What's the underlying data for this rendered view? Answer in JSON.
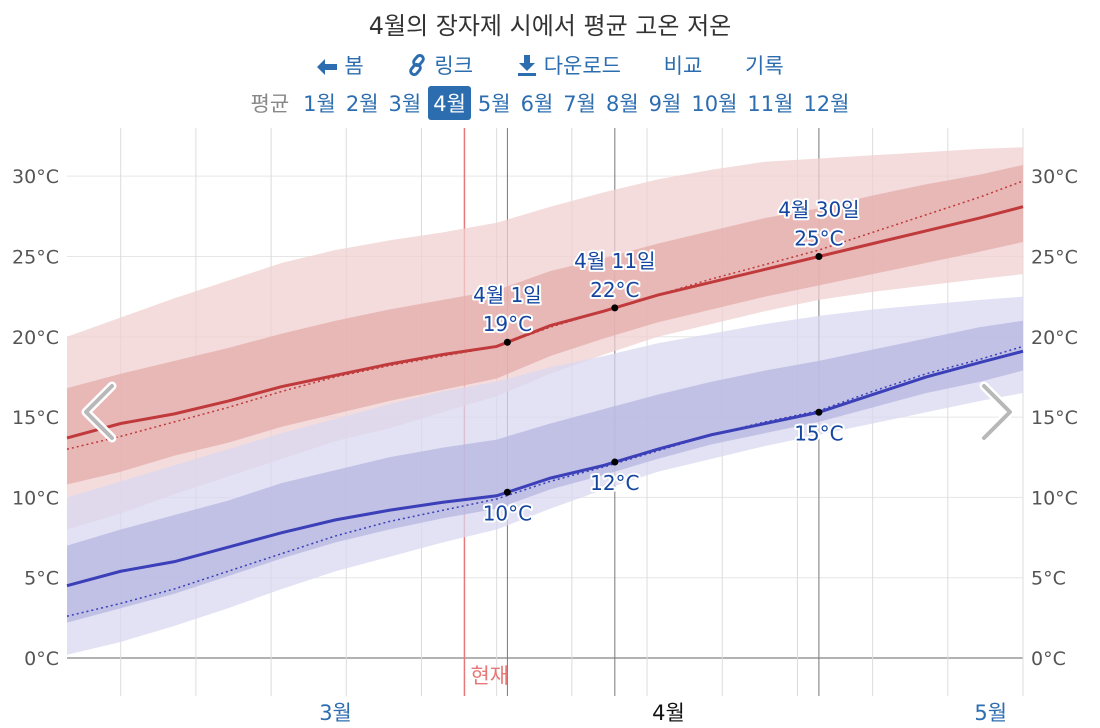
{
  "title": "4월의 장자제 시에서 평균 고온 저온",
  "nav": {
    "home": "봄",
    "link": "링크",
    "download": "다운로드",
    "compare": "비교",
    "history": "기록"
  },
  "months": {
    "label": "평균",
    "items": [
      "1월",
      "2월",
      "3월",
      "4월",
      "5월",
      "6월",
      "7월",
      "8월",
      "9월",
      "10월",
      "11월",
      "12월"
    ],
    "active": "4월"
  },
  "now_label": "현재",
  "colors": {
    "high": "#c0393b",
    "low": "#3b3fb8",
    "high_band_outer": "#f0d0d0",
    "high_band_inner": "#e4acab",
    "low_band_outer": "#d8d8f0",
    "low_band_inner": "#b6b6e2",
    "accent": "#2c6db0",
    "now": "#e87878"
  },
  "chart_data": {
    "type": "area",
    "xlabel": "",
    "ylabel": "",
    "ylim": [
      0,
      33
    ],
    "y_ticks": [
      "0°C",
      "5°C",
      "10°C",
      "15°C",
      "20°C",
      "25°C",
      "30°C"
    ],
    "y_tick_values": [
      0,
      5,
      10,
      15,
      20,
      25,
      30
    ],
    "x_range": [
      "2월 19일",
      "5월 19일"
    ],
    "month_labels": [
      {
        "label": "3월",
        "date": "3월 1일"
      },
      {
        "label": "4월",
        "date": "4월 1일"
      },
      {
        "label": "5월",
        "date": "5월 1일"
      }
    ],
    "now_date": "3월 28일",
    "grid": true,
    "series": [
      {
        "name": "high",
        "x": [
          "2월 19일",
          "2월 24일",
          "3월 1일",
          "3월 6일",
          "3월 11일",
          "3월 16일",
          "3월 21일",
          "3월 26일",
          "3월 31일",
          "4월 5일",
          "4월 10일",
          "4월 15일",
          "4월 20일",
          "4월 25일",
          "4월 30일",
          "5월 5일",
          "5월 10일",
          "5월 15일",
          "5월 19일"
        ],
        "mean": [
          13.7,
          14.6,
          15.2,
          16.0,
          16.9,
          17.6,
          18.3,
          18.9,
          19.4,
          20.7,
          21.6,
          22.6,
          23.4,
          24.2,
          25.0,
          25.8,
          26.6,
          27.4,
          28.1
        ],
        "normal": [
          13.0,
          13.8,
          14.7,
          15.6,
          16.6,
          17.5,
          18.2,
          18.8,
          19.4,
          20.6,
          21.6,
          22.6,
          23.6,
          24.5,
          25.4,
          26.5,
          27.6,
          28.7,
          29.7
        ],
        "p10": [
          8.0,
          9.0,
          10.2,
          11.3,
          12.4,
          13.5,
          14.3,
          15.3,
          16.3,
          17.7,
          18.9,
          20.0,
          20.8,
          21.6,
          22.3,
          22.8,
          23.2,
          23.6,
          23.9
        ],
        "p25": [
          10.8,
          11.6,
          12.6,
          13.4,
          14.4,
          15.2,
          16.0,
          16.7,
          17.4,
          18.8,
          19.9,
          20.9,
          21.7,
          22.5,
          23.2,
          23.9,
          24.6,
          25.3,
          25.9
        ],
        "p75": [
          16.8,
          17.7,
          18.5,
          19.3,
          20.2,
          21.0,
          21.7,
          22.3,
          22.9,
          24.1,
          24.9,
          25.8,
          26.6,
          27.4,
          28.0,
          28.8,
          29.5,
          30.1,
          30.7
        ],
        "p90": [
          20.0,
          21.2,
          22.4,
          23.5,
          24.6,
          25.4,
          26.0,
          26.5,
          27.1,
          28.1,
          29.0,
          29.8,
          30.4,
          30.9,
          31.1,
          31.3,
          31.5,
          31.7,
          31.8
        ]
      },
      {
        "name": "low",
        "x": [
          "2월 19일",
          "2월 24일",
          "3월 1일",
          "3월 6일",
          "3월 11일",
          "3월 16일",
          "3월 21일",
          "3월 26일",
          "3월 31일",
          "4월 5일",
          "4월 10일",
          "4월 15일",
          "4월 20일",
          "4월 25일",
          "4월 30일",
          "5월 5일",
          "5월 10일",
          "5월 15일",
          "5월 19일"
        ],
        "mean": [
          4.5,
          5.4,
          6.0,
          6.9,
          7.8,
          8.6,
          9.2,
          9.7,
          10.1,
          11.2,
          12.0,
          13.0,
          13.9,
          14.6,
          15.3,
          16.4,
          17.5,
          18.4,
          19.1
        ],
        "normal": [
          2.6,
          3.4,
          4.3,
          5.4,
          6.5,
          7.6,
          8.5,
          9.2,
          9.9,
          11.0,
          11.9,
          12.9,
          13.9,
          14.7,
          15.4,
          16.6,
          17.7,
          18.6,
          19.4
        ],
        "p10": [
          0.2,
          1.0,
          2.0,
          3.1,
          4.3,
          5.4,
          6.3,
          7.2,
          8.0,
          9.3,
          10.5,
          11.6,
          12.4,
          13.2,
          13.9,
          14.6,
          15.3,
          16.0,
          16.5
        ],
        "p25": [
          2.2,
          3.1,
          4.0,
          5.1,
          6.2,
          7.2,
          8.0,
          8.7,
          9.3,
          10.5,
          11.4,
          12.4,
          13.3,
          14.0,
          14.7,
          15.6,
          16.5,
          17.2,
          17.9
        ],
        "p75": [
          7.0,
          8.0,
          8.9,
          9.8,
          10.9,
          11.7,
          12.5,
          13.1,
          13.6,
          14.6,
          15.5,
          16.4,
          17.2,
          17.9,
          18.5,
          19.2,
          19.9,
          20.6,
          21.0
        ],
        "p90": [
          10.0,
          11.0,
          12.0,
          13.0,
          14.0,
          14.9,
          15.8,
          16.6,
          17.2,
          18.1,
          18.8,
          19.6,
          20.2,
          20.8,
          21.3,
          21.7,
          22.0,
          22.3,
          22.5
        ]
      }
    ],
    "annotations": [
      {
        "date": "4월 1일",
        "series": "high",
        "value": 19,
        "date_label": "4월 1일",
        "value_label": "19°C"
      },
      {
        "date": "4월 11일",
        "series": "high",
        "value": 22,
        "date_label": "4월 11일",
        "value_label": "22°C"
      },
      {
        "date": "4월 30일",
        "series": "high",
        "value": 25,
        "date_label": "4월 30일",
        "value_label": "25°C"
      },
      {
        "date": "4월 1일",
        "series": "low",
        "value": 10,
        "value_label": "10°C"
      },
      {
        "date": "4월 11일",
        "series": "low",
        "value": 12,
        "value_label": "12°C"
      },
      {
        "date": "4월 30일",
        "series": "low",
        "value": 15,
        "value_label": "15°C"
      }
    ]
  }
}
